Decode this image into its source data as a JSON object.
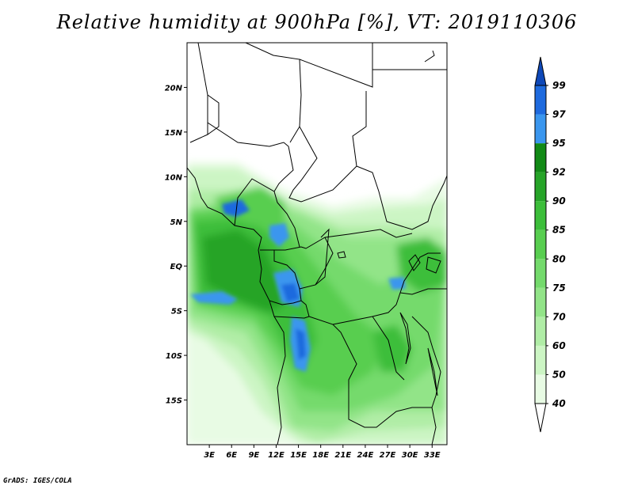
{
  "title": "Relative humidity at 900hPa [%], VT: 2019110306",
  "credit": "GrADS: IGES/COLA",
  "map": {
    "lon_range": [
      0,
      35
    ],
    "lat_range": [
      -20,
      25
    ],
    "lat_ticks": [
      {
        "v": 20,
        "label": "20N"
      },
      {
        "v": 15,
        "label": "15N"
      },
      {
        "v": 10,
        "label": "10N"
      },
      {
        "v": 5,
        "label": "5N"
      },
      {
        "v": 0,
        "label": "EQ"
      },
      {
        "v": -5,
        "label": "5S"
      },
      {
        "v": -10,
        "label": "10S"
      },
      {
        "v": -15,
        "label": "15S"
      }
    ],
    "lon_ticks": [
      {
        "v": 3,
        "label": "3E"
      },
      {
        "v": 6,
        "label": "6E"
      },
      {
        "v": 9,
        "label": "9E"
      },
      {
        "v": 12,
        "label": "12E"
      },
      {
        "v": 15,
        "label": "15E"
      },
      {
        "v": 18,
        "label": "18E"
      },
      {
        "v": 21,
        "label": "21E"
      },
      {
        "v": 24,
        "label": "24E"
      },
      {
        "v": 27,
        "label": "27E"
      },
      {
        "v": 30,
        "label": "30E"
      },
      {
        "v": 33,
        "label": "33E"
      }
    ]
  },
  "colorbar": {
    "levels": [
      "40",
      "50",
      "60",
      "70",
      "75",
      "80",
      "85",
      "90",
      "92",
      "95",
      "97",
      "99"
    ],
    "colors": [
      "#e8fbe4",
      "#ccf5c4",
      "#b0eda6",
      "#92e488",
      "#74da6c",
      "#58ce50",
      "#3cbe3a",
      "#26a428",
      "#128a16",
      "#3a96ee",
      "#1e6ade",
      "#0e48b8"
    ],
    "below_color": "#ffffff"
  },
  "chart_data": {
    "type": "heatmap",
    "variable": "Relative humidity at 900hPa [%]",
    "valid_time": "2019110306",
    "x_range": [
      0,
      35
    ],
    "y_range": [
      -20,
      25
    ],
    "contour_levels": [
      40,
      50,
      60,
      70,
      75,
      80,
      85,
      90,
      92,
      95,
      97,
      99
    ]
  }
}
